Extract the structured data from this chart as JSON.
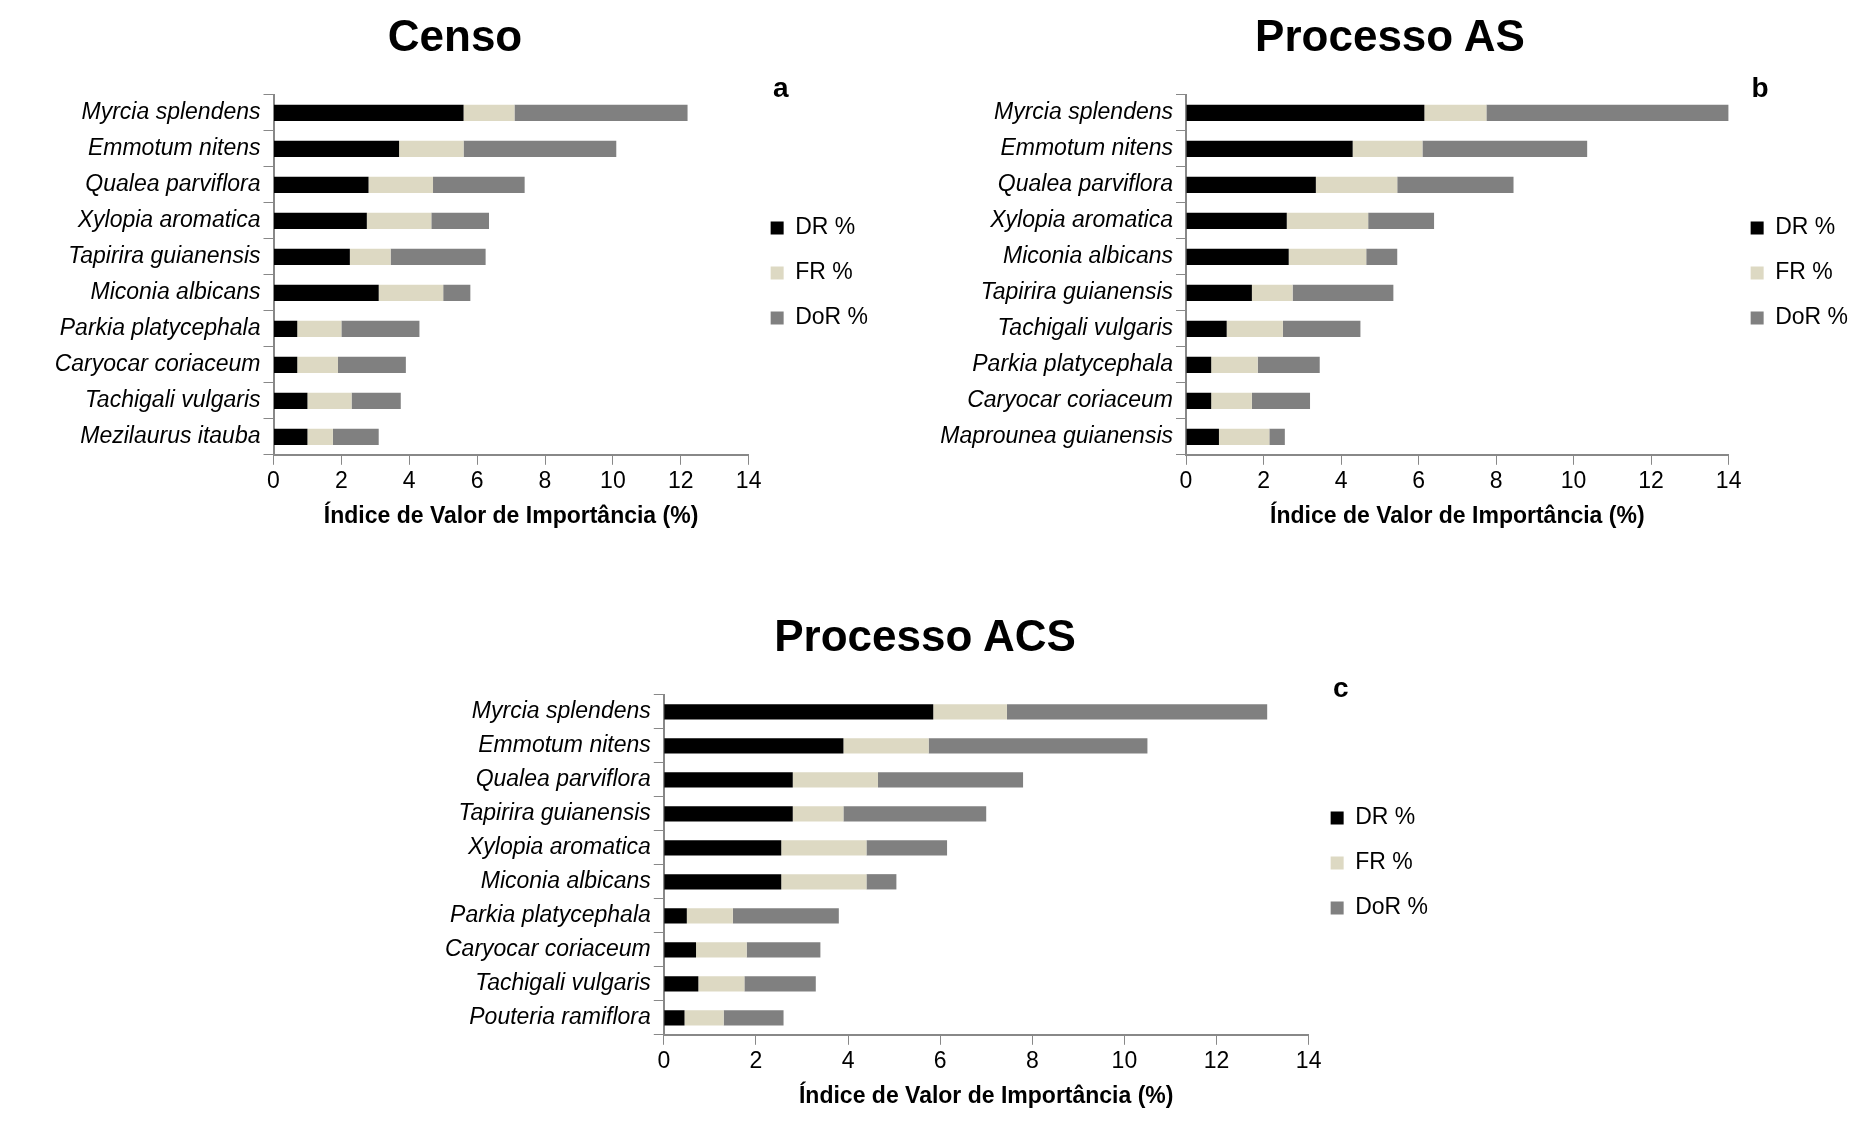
{
  "chart_data": [
    {
      "type": "bar",
      "orientation": "horizontal",
      "stacked": true,
      "title": "Censo",
      "xlabel": "Índice de Valor de Importância (%)",
      "annotations": [
        "a"
      ],
      "legend": "right",
      "grid": false,
      "categories": [
        "Myrcia splendens",
        "Emmotum nitens",
        "Qualea parviflora",
        "Xylopia aromatica",
        "Tapirira guianensis",
        "Miconia albicans",
        "Parkia platycephala",
        "Caryocar coriaceum",
        "Tachigali vulgaris",
        "Mezilaurus itauba"
      ],
      "xlim": [
        0,
        14
      ],
      "xticks": [
        0,
        2,
        4,
        6,
        8,
        10,
        12,
        14
      ],
      "series": [
        {
          "name": "DR %",
          "color": "#000000",
          "values": [
            5.6,
            3.7,
            2.8,
            2.75,
            2.25,
            3.1,
            0.7,
            0.7,
            1.0,
            1.0
          ]
        },
        {
          "name": "FR %",
          "color": "#ddd9c3",
          "values": [
            1.5,
            1.9,
            1.9,
            1.9,
            1.2,
            1.9,
            1.3,
            1.2,
            1.3,
            0.75
          ]
        },
        {
          "name": "DoR %",
          "color": "#808080",
          "values": [
            5.1,
            4.5,
            2.7,
            1.7,
            2.8,
            0.8,
            2.3,
            2.0,
            1.45,
            1.35
          ]
        }
      ]
    },
    {
      "type": "bar",
      "orientation": "horizontal",
      "stacked": true,
      "title": "Processo AS",
      "xlabel": "Índice de Valor de Importância (%)",
      "annotations": [
        "b"
      ],
      "legend": "right",
      "grid": false,
      "categories": [
        "Myrcia splendens",
        "Emmotum nitens",
        "Qualea parviflora",
        "Xylopia aromatica",
        "Miconia albicans",
        "Tapirira guianensis",
        "Tachigali vulgaris",
        "Parkia platycephala",
        "Caryocar coriaceum",
        "Maprounea guianensis"
      ],
      "xlim": [
        0,
        14
      ],
      "xticks": [
        0,
        2,
        4,
        6,
        8,
        10,
        12,
        14
      ],
      "series": [
        {
          "name": "DR %",
          "color": "#000000",
          "values": [
            6.15,
            4.3,
            3.35,
            2.6,
            2.65,
            1.7,
            1.05,
            0.65,
            0.65,
            0.85
          ]
        },
        {
          "name": "FR %",
          "color": "#ddd9c3",
          "values": [
            1.6,
            1.8,
            2.1,
            2.1,
            2.0,
            1.05,
            1.45,
            1.2,
            1.05,
            1.3
          ]
        },
        {
          "name": "DoR %",
          "color": "#808080",
          "values": [
            6.25,
            4.25,
            3.0,
            1.7,
            0.8,
            2.6,
            2.0,
            1.6,
            1.5,
            0.4
          ]
        }
      ]
    },
    {
      "type": "bar",
      "orientation": "horizontal",
      "stacked": true,
      "title": "Processo ACS",
      "xlabel": "Índice de Valor de Importância (%)",
      "annotations": [
        "c"
      ],
      "legend": "right",
      "grid": false,
      "categories": [
        "Myrcia splendens",
        "Emmotum nitens",
        "Qualea parviflora",
        "Tapirira guianensis",
        "Xylopia aromatica",
        "Miconia albicans",
        "Parkia platycephala",
        "Caryocar coriaceum",
        "Tachigali vulgaris",
        "Pouteria ramiflora"
      ],
      "xlim": [
        0,
        14
      ],
      "xticks": [
        0,
        2,
        4,
        6,
        8,
        10,
        12,
        14
      ],
      "series": [
        {
          "name": "DR %",
          "color": "#000000",
          "values": [
            5.85,
            3.9,
            2.8,
            2.8,
            2.55,
            2.55,
            0.5,
            0.7,
            0.75,
            0.45
          ]
        },
        {
          "name": "FR %",
          "color": "#ddd9c3",
          "values": [
            1.6,
            1.85,
            1.85,
            1.1,
            1.85,
            1.85,
            1.0,
            1.1,
            1.0,
            0.85
          ]
        },
        {
          "name": "DoR %",
          "color": "#808080",
          "values": [
            5.65,
            4.75,
            3.15,
            3.1,
            1.75,
            0.65,
            2.3,
            1.6,
            1.55,
            1.3
          ]
        }
      ]
    }
  ]
}
